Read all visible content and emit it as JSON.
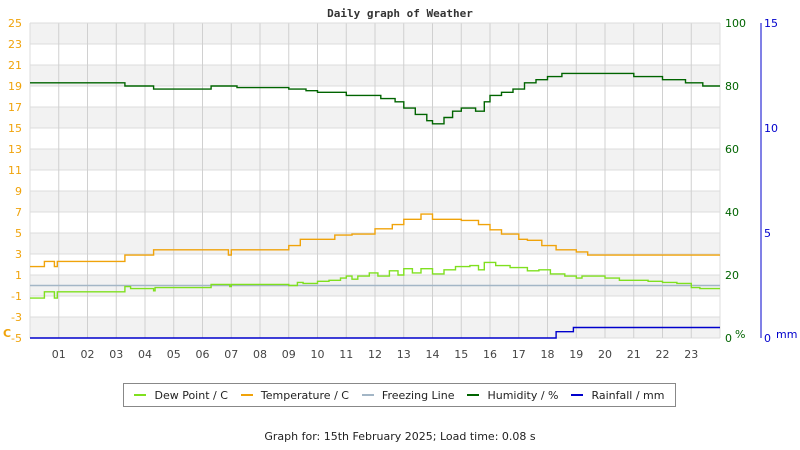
{
  "chart_data": {
    "type": "line",
    "title": "Daily graph of Weather",
    "xlabel": "",
    "x_ticks": [
      "01",
      "02",
      "03",
      "04",
      "05",
      "06",
      "07",
      "08",
      "09",
      "10",
      "11",
      "12",
      "13",
      "14",
      "15",
      "16",
      "17",
      "18",
      "19",
      "20",
      "21",
      "22",
      "23"
    ],
    "xlim": [
      0,
      24
    ],
    "left_axis": {
      "unit_label": "C",
      "ylim": [
        -5,
        25
      ],
      "ticks": [
        25,
        23,
        21,
        19,
        17,
        15,
        13,
        11,
        9,
        7,
        5,
        3,
        1,
        -1,
        -3,
        -5
      ]
    },
    "right_axis_humidity": {
      "unit_label": "%",
      "ylim": [
        0,
        100
      ],
      "ticks": [
        100,
        80,
        60,
        40,
        20,
        0
      ]
    },
    "right_axis_rain": {
      "unit_label": "mm",
      "ylim": [
        0,
        15
      ],
      "ticks": [
        15,
        10,
        5,
        0
      ]
    },
    "grid": true,
    "legend_position": "bottom",
    "series": [
      {
        "name": "Dew Point / C",
        "axis": "left",
        "color": "#7fe01f",
        "points": [
          [
            0,
            -1.2
          ],
          [
            0.5,
            -0.6
          ],
          [
            0.85,
            -1.2
          ],
          [
            0.95,
            -0.6
          ],
          [
            3.3,
            -0.1
          ],
          [
            3.5,
            -0.3
          ],
          [
            4.3,
            -0.5
          ],
          [
            4.35,
            -0.2
          ],
          [
            6.3,
            0.1
          ],
          [
            6.95,
            -0.1
          ],
          [
            7.0,
            0.1
          ],
          [
            7.8,
            0.1
          ],
          [
            9.0,
            0.0
          ],
          [
            9.3,
            0.3
          ],
          [
            9.5,
            0.2
          ],
          [
            10.0,
            0.4
          ],
          [
            10.4,
            0.5
          ],
          [
            10.8,
            0.7
          ],
          [
            11.0,
            0.9
          ],
          [
            11.2,
            0.6
          ],
          [
            11.4,
            0.9
          ],
          [
            11.8,
            1.2
          ],
          [
            12.1,
            0.9
          ],
          [
            12.5,
            1.4
          ],
          [
            12.8,
            1.0
          ],
          [
            13.0,
            1.6
          ],
          [
            13.3,
            1.2
          ],
          [
            13.6,
            1.6
          ],
          [
            14.0,
            1.1
          ],
          [
            14.4,
            1.5
          ],
          [
            14.8,
            1.8
          ],
          [
            15.3,
            1.9
          ],
          [
            15.6,
            1.5
          ],
          [
            15.8,
            2.2
          ],
          [
            16.2,
            1.9
          ],
          [
            16.7,
            1.7
          ],
          [
            17.3,
            1.4
          ],
          [
            17.7,
            1.5
          ],
          [
            18.1,
            1.1
          ],
          [
            18.6,
            0.9
          ],
          [
            19.0,
            0.7
          ],
          [
            19.2,
            0.9
          ],
          [
            20.0,
            0.7
          ],
          [
            20.5,
            0.5
          ],
          [
            21.5,
            0.4
          ],
          [
            22.0,
            0.3
          ],
          [
            22.5,
            0.2
          ],
          [
            23.0,
            -0.2
          ],
          [
            23.3,
            -0.3
          ],
          [
            24,
            -0.3
          ]
        ]
      },
      {
        "name": "Temperature / C",
        "axis": "left",
        "color": "#f0a30a",
        "points": [
          [
            0,
            1.8
          ],
          [
            0.5,
            2.3
          ],
          [
            0.85,
            1.8
          ],
          [
            0.95,
            2.3
          ],
          [
            3.3,
            2.9
          ],
          [
            4.3,
            3.4
          ],
          [
            6.9,
            2.9
          ],
          [
            7.0,
            3.4
          ],
          [
            9.0,
            3.8
          ],
          [
            9.4,
            4.4
          ],
          [
            10.6,
            4.8
          ],
          [
            11.2,
            4.9
          ],
          [
            12.0,
            5.4
          ],
          [
            12.6,
            5.8
          ],
          [
            13.0,
            6.3
          ],
          [
            13.6,
            6.8
          ],
          [
            14.0,
            6.3
          ],
          [
            14.3,
            6.3
          ],
          [
            15.0,
            6.2
          ],
          [
            15.6,
            5.8
          ],
          [
            16.0,
            5.3
          ],
          [
            16.4,
            4.9
          ],
          [
            17.0,
            4.4
          ],
          [
            17.3,
            4.3
          ],
          [
            17.8,
            3.8
          ],
          [
            18.3,
            3.4
          ],
          [
            19.0,
            3.2
          ],
          [
            19.4,
            2.9
          ],
          [
            20.0,
            2.9
          ],
          [
            24,
            2.9
          ]
        ]
      },
      {
        "name": "Freezing Line",
        "axis": "left",
        "color": "#a3b6c6",
        "points": [
          [
            0,
            0
          ],
          [
            24,
            0
          ]
        ]
      },
      {
        "name": "Humidity / %",
        "axis": "humidity",
        "color": "#006400",
        "points": [
          [
            0,
            81
          ],
          [
            3.3,
            80
          ],
          [
            4.3,
            79
          ],
          [
            6.3,
            80
          ],
          [
            7.2,
            79.5
          ],
          [
            9.0,
            79
          ],
          [
            9.6,
            78.5
          ],
          [
            10.0,
            78
          ],
          [
            11.0,
            77
          ],
          [
            12.2,
            76
          ],
          [
            12.7,
            75
          ],
          [
            13.0,
            73
          ],
          [
            13.4,
            71
          ],
          [
            13.8,
            69
          ],
          [
            14.0,
            68
          ],
          [
            14.4,
            70
          ],
          [
            14.7,
            72
          ],
          [
            15.0,
            73
          ],
          [
            15.5,
            72
          ],
          [
            15.8,
            75
          ],
          [
            16.0,
            77
          ],
          [
            16.4,
            78
          ],
          [
            16.8,
            79
          ],
          [
            17.2,
            81
          ],
          [
            17.6,
            82
          ],
          [
            18.0,
            83
          ],
          [
            18.5,
            84
          ],
          [
            19.0,
            84
          ],
          [
            21.0,
            83
          ],
          [
            22.0,
            82
          ],
          [
            22.8,
            81
          ],
          [
            23.4,
            80
          ],
          [
            24,
            80
          ]
        ]
      },
      {
        "name": "Rainfall / mm",
        "axis": "rain",
        "color": "#0000cc",
        "points": [
          [
            0,
            0
          ],
          [
            18.3,
            0
          ],
          [
            18.3,
            0.3
          ],
          [
            18.9,
            0.3
          ],
          [
            18.9,
            0.5
          ],
          [
            24,
            0.5
          ]
        ]
      }
    ]
  },
  "legend": [
    {
      "label": "Dew Point / C",
      "color": "#7fe01f"
    },
    {
      "label": "Temperature / C",
      "color": "#f0a30a"
    },
    {
      "label": "Freezing Line",
      "color": "#a3b6c6"
    },
    {
      "label": "Humidity / %",
      "color": "#006400"
    },
    {
      "label": "Rainfall / mm",
      "color": "#0000cc"
    }
  ],
  "footer": "Graph for: 15th February 2025; Load time: 0.08 s"
}
